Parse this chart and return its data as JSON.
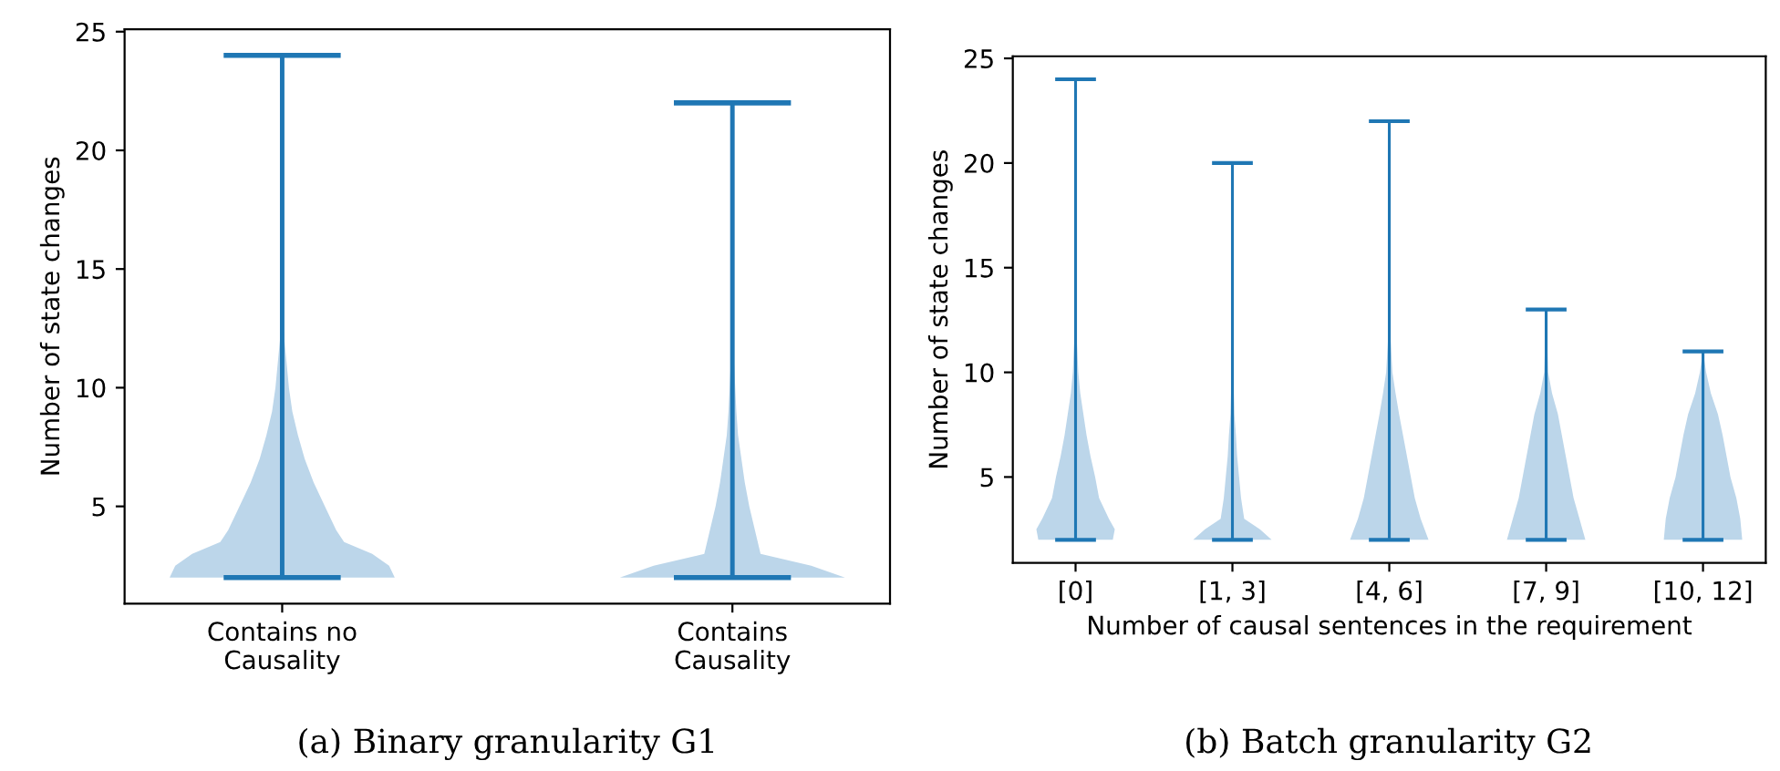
{
  "chart_data": [
    {
      "type": "bar",
      "ylabel": "Number of state changes",
      "ylim": [
        0.9,
        25.1
      ],
      "yticks": [
        5,
        10,
        15,
        20,
        25
      ],
      "color": "#1f77b4",
      "categories": [
        "Contains no\nCausality",
        "Contains\nCausality"
      ],
      "base": [
        2,
        2
      ],
      "values": [
        22,
        20
      ],
      "annotations": [
        "(a) Binary granularity G1"
      ]
    },
    {
      "type": "bar",
      "ylabel": "Number of state changes",
      "xlabel": "Number of causal sentences in the requirement",
      "ylim": [
        0.9,
        25.1
      ],
      "yticks": [
        5,
        10,
        15,
        20,
        25
      ],
      "color": "#1f77b4",
      "categories": [
        "[0]",
        "[1, 3]",
        "[4, 6]",
        "[7, 9]",
        "[10, 12]"
      ],
      "base": [
        2,
        2,
        2,
        2,
        2
      ],
      "values": [
        22,
        18,
        20,
        11,
        9
      ],
      "annotations": [
        "(b) Batch granularity G2"
      ]
    }
  ]
}
